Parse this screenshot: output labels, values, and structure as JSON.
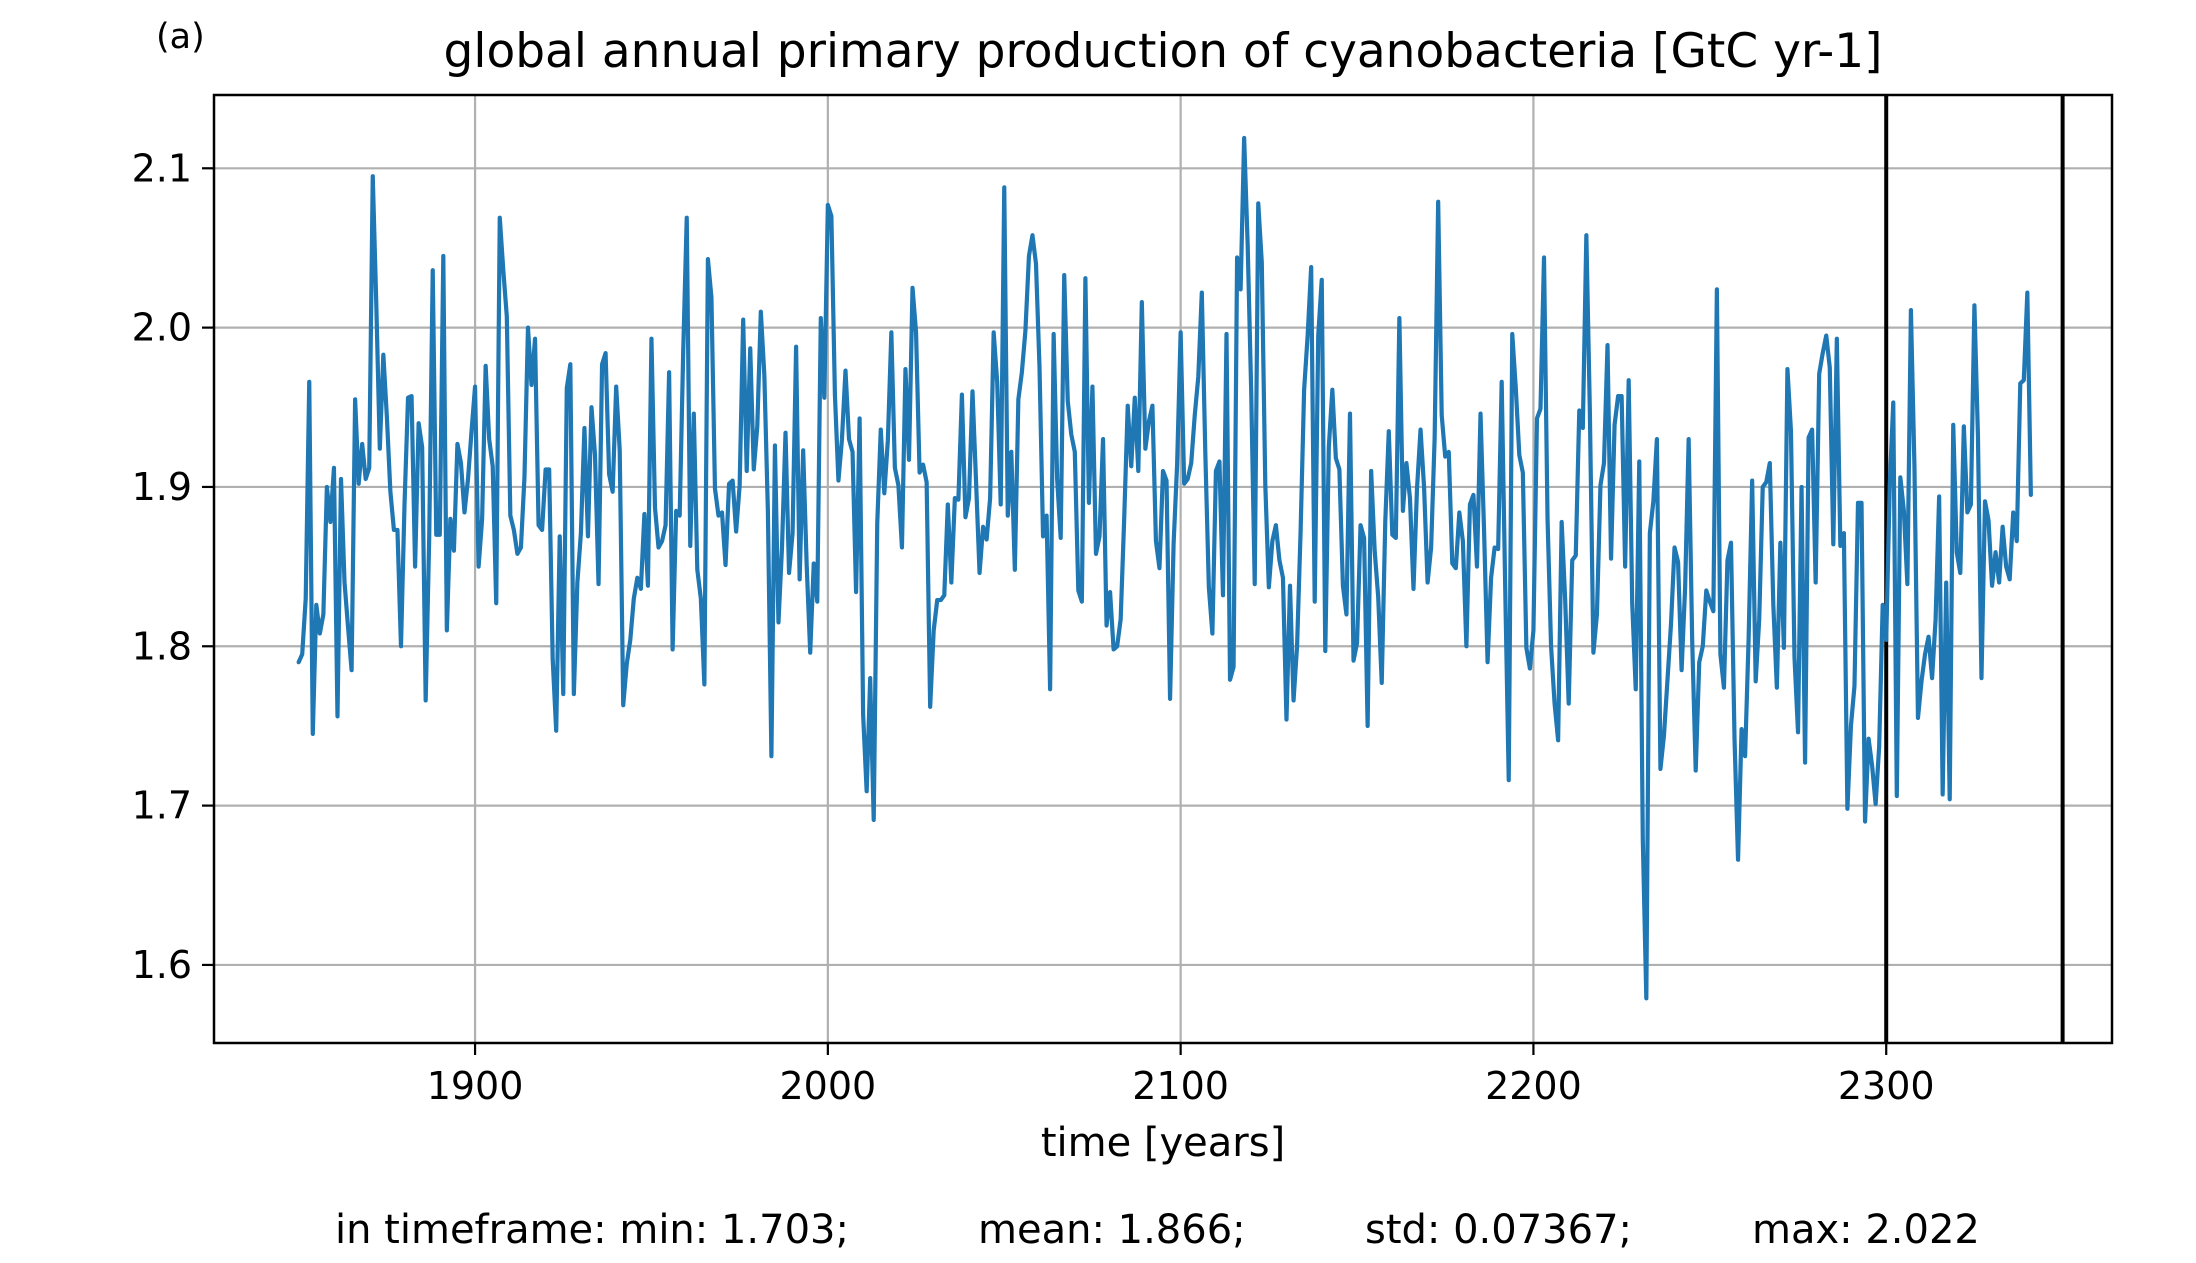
{
  "panel_label": "(a)",
  "stats": {
    "min": "in timeframe: min: 1.703;",
    "mean": "mean: 1.866;",
    "std": "std: 0.07367;",
    "max": "max: 2.022"
  },
  "colors": {
    "series": "#1f77b4",
    "vlines": "#000000",
    "grid": "#b0b0b0"
  },
  "chart_data": {
    "type": "line",
    "title": "global annual primary production of cyanobacteria [GtC yr-1]",
    "xlabel": "time [years]",
    "ylabel": "",
    "xlim": [
      1826,
      2364
    ],
    "ylim": [
      1.551,
      2.146
    ],
    "xticks": [
      1900,
      2000,
      2100,
      2200,
      2300
    ],
    "yticks": [
      1.6,
      1.7,
      1.8,
      1.9,
      2.0,
      2.1
    ],
    "grid": true,
    "legend": "none",
    "vertical_lines": [
      2300,
      2350
    ],
    "x_start": 1850,
    "x_step": 1,
    "series": [
      {
        "values": [
          1.79,
          1.795,
          1.83,
          1.966,
          1.745,
          1.826,
          1.808,
          1.82,
          1.9,
          1.878,
          1.912,
          1.756,
          1.905,
          1.84,
          1.812,
          1.785,
          1.955,
          1.902,
          1.927,
          1.905,
          1.912,
          2.095,
          2.015,
          1.924,
          1.983,
          1.944,
          1.897,
          1.873,
          1.873,
          1.8,
          1.889,
          1.956,
          1.957,
          1.85,
          1.94,
          1.925,
          1.766,
          1.868,
          2.036,
          1.87,
          1.87,
          2.045,
          1.81,
          1.88,
          1.86,
          1.927,
          1.915,
          1.884,
          1.905,
          1.935,
          1.963,
          1.85,
          1.88,
          1.976,
          1.93,
          1.913,
          1.827,
          2.069,
          2.036,
          2.007,
          1.882,
          1.873,
          1.858,
          1.862,
          1.906,
          2.0,
          1.964,
          1.993,
          1.876,
          1.873,
          1.911,
          1.911,
          1.792,
          1.747,
          1.869,
          1.77,
          1.962,
          1.977,
          1.77,
          1.84,
          1.871,
          1.937,
          1.869,
          1.95,
          1.92,
          1.839,
          1.977,
          1.984,
          1.908,
          1.897,
          1.963,
          1.923,
          1.763,
          1.789,
          1.804,
          1.83,
          1.843,
          1.836,
          1.883,
          1.838,
          1.993,
          1.887,
          1.862,
          1.866,
          1.876,
          1.972,
          1.798,
          1.885,
          1.882,
          1.985,
          2.069,
          1.863,
          1.946,
          1.848,
          1.83,
          1.776,
          2.043,
          2.019,
          1.899,
          1.882,
          1.884,
          1.851,
          1.902,
          1.904,
          1.872,
          1.901,
          2.005,
          1.91,
          1.987,
          1.911,
          1.938,
          2.01,
          1.97,
          1.885,
          1.731,
          1.926,
          1.815,
          1.862,
          1.934,
          1.846,
          1.871,
          1.988,
          1.842,
          1.923,
          1.851,
          1.796,
          1.852,
          1.828,
          2.006,
          1.956,
          2.077,
          2.07,
          1.958,
          1.904,
          1.93,
          1.973,
          1.93,
          1.922,
          1.834,
          1.943,
          1.757,
          1.709,
          1.78,
          1.691,
          1.877,
          1.936,
          1.896,
          1.929,
          1.997,
          1.912,
          1.901,
          1.862,
          1.974,
          1.917,
          2.025,
          1.997,
          1.909,
          1.914,
          1.903,
          1.762,
          1.81,
          1.829,
          1.829,
          1.832,
          1.889,
          1.84,
          1.893,
          1.892,
          1.958,
          1.881,
          1.893,
          1.96,
          1.904,
          1.846,
          1.875,
          1.867,
          1.893,
          1.997,
          1.966,
          1.889,
          2.088,
          1.882,
          1.922,
          1.848,
          1.955,
          1.972,
          1.998,
          2.045,
          2.058,
          2.04,
          1.975,
          1.869,
          1.882,
          1.773,
          1.996,
          1.905,
          1.868,
          2.033,
          1.954,
          1.933,
          1.922,
          1.835,
          1.828,
          2.031,
          1.89,
          1.963,
          1.858,
          1.869,
          1.93,
          1.813,
          1.834,
          1.798,
          1.8,
          1.817,
          1.88,
          1.951,
          1.913,
          1.956,
          1.91,
          2.016,
          1.924,
          1.941,
          1.951,
          1.866,
          1.849,
          1.91,
          1.904,
          1.767,
          1.864,
          1.914,
          1.997,
          1.902,
          1.905,
          1.915,
          1.945,
          1.969,
          2.022,
          1.921,
          1.837,
          1.808,
          1.91,
          1.916,
          1.832,
          1.996,
          1.779,
          1.787,
          2.044,
          2.024,
          2.119,
          2.052,
          1.96,
          1.839,
          2.078,
          2.041,
          1.901,
          1.837,
          1.866,
          1.876,
          1.854,
          1.843,
          1.754,
          1.838,
          1.766,
          1.8,
          1.872,
          1.961,
          1.995,
          2.038,
          1.828,
          1.995,
          2.03,
          1.797,
          1.925,
          1.961,
          1.918,
          1.911,
          1.838,
          1.82,
          1.946,
          1.791,
          1.802,
          1.876,
          1.868,
          1.75,
          1.91,
          1.86,
          1.831,
          1.777,
          1.878,
          1.935,
          1.87,
          1.868,
          2.006,
          1.885,
          1.915,
          1.893,
          1.836,
          1.899,
          1.936,
          1.9,
          1.84,
          1.862,
          1.931,
          2.079,
          1.945,
          1.919,
          1.922,
          1.852,
          1.849,
          1.884,
          1.866,
          1.8,
          1.889,
          1.895,
          1.85,
          1.946,
          1.873,
          1.79,
          1.843,
          1.862,
          1.861,
          1.966,
          1.837,
          1.716,
          1.996,
          1.962,
          1.92,
          1.909,
          1.799,
          1.786,
          1.81,
          1.943,
          1.949,
          2.044,
          1.88,
          1.8,
          1.764,
          1.741,
          1.878,
          1.829,
          1.764,
          1.854,
          1.857,
          1.948,
          1.937,
          2.058,
          1.947,
          1.796,
          1.82,
          1.901,
          1.915,
          1.989,
          1.855,
          1.939,
          1.957,
          1.957,
          1.85,
          1.967,
          1.827,
          1.773,
          1.916,
          1.679,
          1.579,
          1.871,
          1.891,
          1.93,
          1.723,
          1.744,
          1.779,
          1.814,
          1.862,
          1.853,
          1.785,
          1.837,
          1.93,
          1.804,
          1.722,
          1.79,
          1.8,
          1.835,
          1.828,
          1.822,
          2.024,
          1.795,
          1.774,
          1.854,
          1.865,
          1.742,
          1.666,
          1.748,
          1.731,
          1.805,
          1.904,
          1.778,
          1.817,
          1.9,
          1.903,
          1.915,
          1.826,
          1.774,
          1.865,
          1.799,
          1.974,
          1.935,
          1.793,
          1.746,
          1.9,
          1.727,
          1.931,
          1.936,
          1.84,
          1.971,
          1.984,
          1.995,
          1.975,
          1.864,
          1.993,
          1.863,
          1.871,
          1.698,
          1.75,
          1.775,
          1.89,
          1.89,
          1.69,
          1.742,
          1.725,
          1.701,
          1.737,
          1.826,
          1.804,
          1.901,
          1.953,
          1.706,
          1.906,
          1.885,
          1.839,
          2.011,
          1.913,
          1.755,
          1.778,
          1.795,
          1.806,
          1.78,
          1.817,
          1.894,
          1.707,
          1.84,
          1.704,
          1.939,
          1.859,
          1.846,
          1.938,
          1.884,
          1.889,
          2.014,
          1.932,
          1.78,
          1.891,
          1.879,
          1.838,
          1.859,
          1.84,
          1.875,
          1.85,
          1.842,
          1.884,
          1.866,
          1.965,
          1.967,
          2.022,
          1.895
        ]
      }
    ]
  }
}
